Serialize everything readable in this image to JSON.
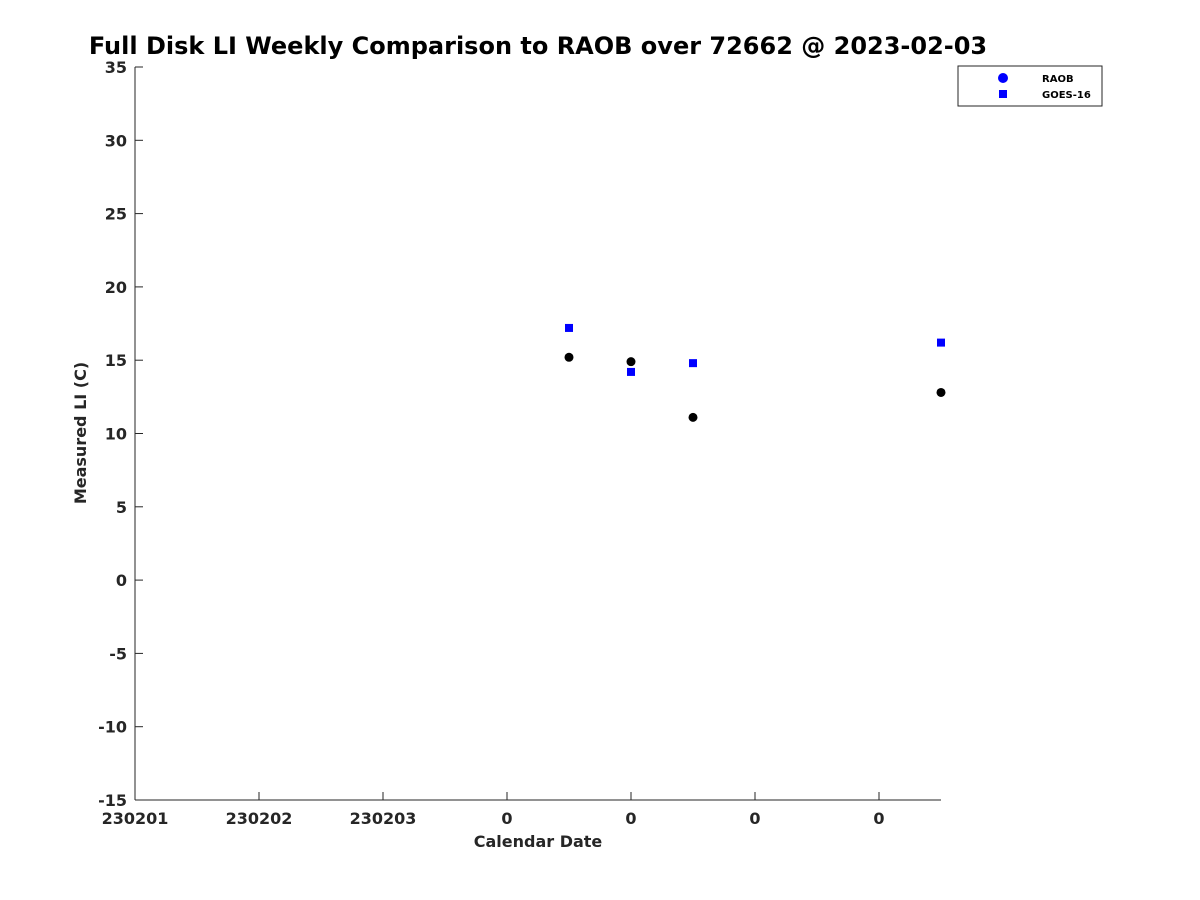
{
  "chart_data": {
    "type": "scatter",
    "title": "Full Disk LI Weekly Comparison to RAOB over 72662 @ 2023-02-03",
    "xlabel": "Calendar Date",
    "ylabel": "Measured LI (C)",
    "xlim": [
      0,
      6.5
    ],
    "ylim": [
      -15,
      35
    ],
    "x_ticks": [
      0,
      1,
      2,
      3,
      4,
      5,
      6
    ],
    "x_tick_labels": [
      "230201",
      "230202",
      "230203",
      "0",
      "0",
      "0",
      "0"
    ],
    "y_ticks": [
      -15,
      -10,
      -5,
      0,
      5,
      10,
      15,
      20,
      25,
      30,
      35
    ],
    "y_tick_labels": [
      "-15",
      "-10",
      "-5",
      "0",
      "5",
      "10",
      "15",
      "20",
      "25",
      "30",
      "35"
    ],
    "grid": false,
    "legend_position": "top-right",
    "series": [
      {
        "name": "RAOB",
        "marker": "circle",
        "legend_color": "#0000ff",
        "point_color": "#000000",
        "x": [
          3.5,
          4.0,
          4.5,
          6.5
        ],
        "y": [
          15.2,
          14.9,
          11.1,
          12.8
        ]
      },
      {
        "name": "GOES-16",
        "marker": "square",
        "legend_color": "#0000ff",
        "point_color": "#0000ff",
        "x": [
          3.5,
          4.0,
          4.5,
          6.5
        ],
        "y": [
          17.2,
          14.2,
          14.8,
          16.2
        ]
      }
    ]
  }
}
